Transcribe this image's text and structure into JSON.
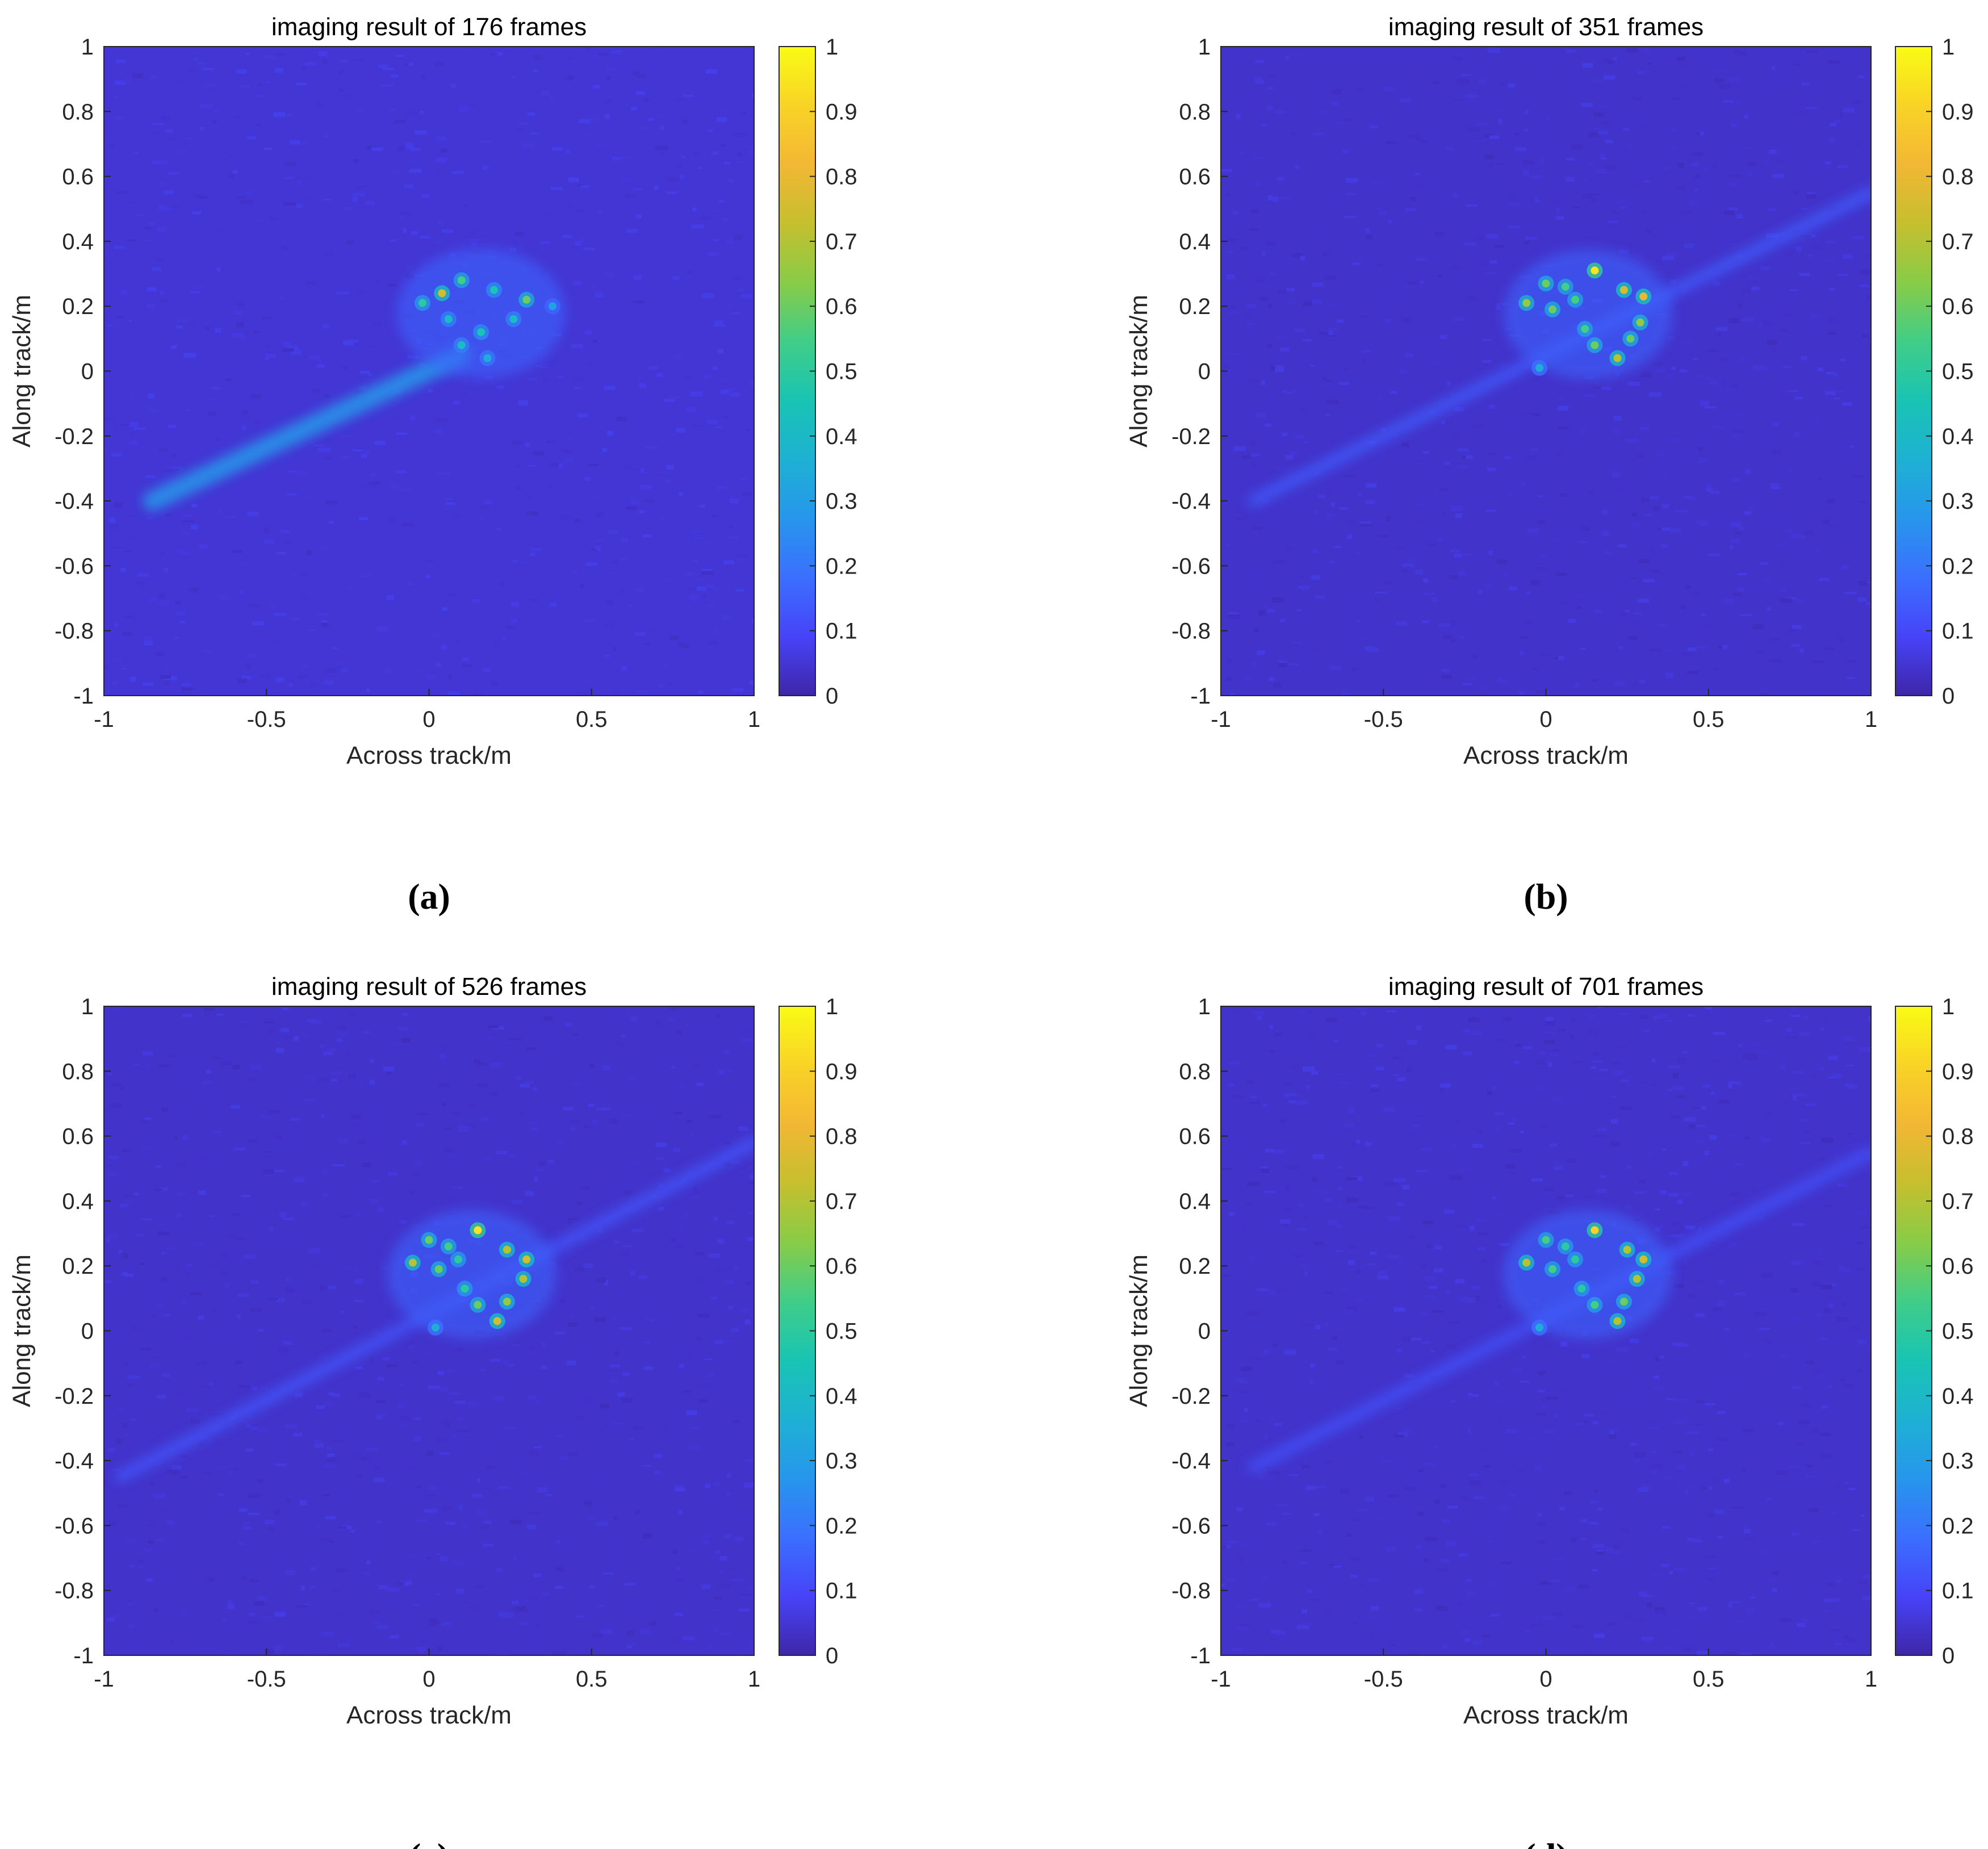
{
  "figure": {
    "colormap": [
      "#3e26a8",
      "#4743f8",
      "#3b6ffe",
      "#2796ec",
      "#1eb1d3",
      "#19c4b3",
      "#40cd88",
      "#88cc48",
      "#c6bf2e",
      "#f2b734",
      "#f9d326",
      "#f9fb15"
    ],
    "background_color": "#3a32b4"
  },
  "chart_data": [
    {
      "type": "heatmap",
      "panel_label": "(a)",
      "title": "imaging result of 176 frames",
      "xlabel": "Across track/m",
      "ylabel": "Along track/m",
      "xlim": [
        -1,
        1
      ],
      "ylim": [
        -1,
        1
      ],
      "xticks": [
        "-1",
        "-0.5",
        "0",
        "0.5",
        "1"
      ],
      "yticks": [
        "1",
        "0.8",
        "0.6",
        "0.4",
        "0.2",
        "0",
        "-0.2",
        "-0.4",
        "-0.6",
        "-0.8",
        "-1"
      ],
      "colorbar": {
        "clim": [
          0,
          1
        ],
        "ticks": [
          "1",
          "0.9",
          "0.8",
          "0.7",
          "0.6",
          "0.5",
          "0.4",
          "0.3",
          "0.2",
          "0.1",
          "0"
        ]
      },
      "background_level": 0.05,
      "peaks": [
        {
          "x": 0.04,
          "y": 0.24,
          "value": 0.75
        },
        {
          "x": -0.02,
          "y": 0.21,
          "value": 0.5
        },
        {
          "x": 0.1,
          "y": 0.28,
          "value": 0.55
        },
        {
          "x": 0.2,
          "y": 0.25,
          "value": 0.45
        },
        {
          "x": 0.3,
          "y": 0.22,
          "value": 0.6
        },
        {
          "x": 0.26,
          "y": 0.16,
          "value": 0.4
        },
        {
          "x": 0.16,
          "y": 0.12,
          "value": 0.45
        },
        {
          "x": 0.1,
          "y": 0.08,
          "value": 0.4
        },
        {
          "x": 0.18,
          "y": 0.04,
          "value": 0.35
        },
        {
          "x": 0.06,
          "y": 0.16,
          "value": 0.4
        },
        {
          "x": 0.38,
          "y": 0.2,
          "value": 0.3
        }
      ],
      "streak": {
        "from": [
          -0.85,
          -0.4
        ],
        "to": [
          0.1,
          0.05
        ],
        "value": 0.28,
        "width": 0.06
      }
    },
    {
      "type": "heatmap",
      "panel_label": "(b)",
      "title": "imaging result of 351 frames",
      "xlabel": "Across track/m",
      "ylabel": "Along track/m",
      "xlim": [
        -1,
        1
      ],
      "ylim": [
        -1,
        1
      ],
      "xticks": [
        "-1",
        "-0.5",
        "0",
        "0.5",
        "1"
      ],
      "yticks": [
        "1",
        "0.8",
        "0.6",
        "0.4",
        "0.2",
        "0",
        "-0.2",
        "-0.4",
        "-0.6",
        "-0.8",
        "-1"
      ],
      "colorbar": {
        "clim": [
          0,
          1
        ],
        "ticks": [
          "1",
          "0.9",
          "0.8",
          "0.7",
          "0.6",
          "0.5",
          "0.4",
          "0.3",
          "0.2",
          "0.1",
          "0"
        ]
      },
      "background_level": 0.04,
      "peaks": [
        {
          "x": 0.15,
          "y": 0.31,
          "value": 0.95
        },
        {
          "x": 0.0,
          "y": 0.27,
          "value": 0.6
        },
        {
          "x": 0.06,
          "y": 0.26,
          "value": 0.55
        },
        {
          "x": -0.06,
          "y": 0.21,
          "value": 0.65
        },
        {
          "x": 0.02,
          "y": 0.19,
          "value": 0.6
        },
        {
          "x": 0.09,
          "y": 0.22,
          "value": 0.55
        },
        {
          "x": 0.24,
          "y": 0.25,
          "value": 0.75
        },
        {
          "x": 0.3,
          "y": 0.23,
          "value": 0.8
        },
        {
          "x": 0.29,
          "y": 0.15,
          "value": 0.65
        },
        {
          "x": 0.26,
          "y": 0.1,
          "value": 0.6
        },
        {
          "x": 0.22,
          "y": 0.04,
          "value": 0.7
        },
        {
          "x": 0.15,
          "y": 0.08,
          "value": 0.6
        },
        {
          "x": 0.12,
          "y": 0.13,
          "value": 0.55
        },
        {
          "x": -0.02,
          "y": 0.01,
          "value": 0.35
        }
      ],
      "streak": {
        "from": [
          -0.9,
          -0.4
        ],
        "to": [
          1.0,
          0.55
        ],
        "value": 0.14,
        "width": 0.035
      }
    },
    {
      "type": "heatmap",
      "panel_label": "(c)",
      "title": "imaging result of 526 frames",
      "xlabel": "Across track/m",
      "ylabel": "Along track/m",
      "xlim": [
        -1,
        1
      ],
      "ylim": [
        -1,
        1
      ],
      "xticks": [
        "-1",
        "-0.5",
        "0",
        "0.5",
        "1"
      ],
      "yticks": [
        "1",
        "0.8",
        "0.6",
        "0.4",
        "0.2",
        "0",
        "-0.2",
        "-0.4",
        "-0.6",
        "-0.8",
        "-1"
      ],
      "colorbar": {
        "clim": [
          0,
          1
        ],
        "ticks": [
          "1",
          "0.9",
          "0.8",
          "0.7",
          "0.6",
          "0.5",
          "0.4",
          "0.3",
          "0.2",
          "0.1",
          "0"
        ]
      },
      "background_level": 0.04,
      "peaks": [
        {
          "x": 0.15,
          "y": 0.31,
          "value": 0.95
        },
        {
          "x": 0.0,
          "y": 0.28,
          "value": 0.6
        },
        {
          "x": 0.06,
          "y": 0.26,
          "value": 0.55
        },
        {
          "x": -0.05,
          "y": 0.21,
          "value": 0.7
        },
        {
          "x": 0.03,
          "y": 0.19,
          "value": 0.6
        },
        {
          "x": 0.09,
          "y": 0.22,
          "value": 0.5
        },
        {
          "x": 0.24,
          "y": 0.25,
          "value": 0.7
        },
        {
          "x": 0.3,
          "y": 0.22,
          "value": 0.75
        },
        {
          "x": 0.29,
          "y": 0.16,
          "value": 0.7
        },
        {
          "x": 0.24,
          "y": 0.09,
          "value": 0.65
        },
        {
          "x": 0.21,
          "y": 0.03,
          "value": 0.75
        },
        {
          "x": 0.15,
          "y": 0.08,
          "value": 0.6
        },
        {
          "x": 0.11,
          "y": 0.13,
          "value": 0.5
        },
        {
          "x": 0.02,
          "y": 0.01,
          "value": 0.35
        }
      ],
      "streak": {
        "from": [
          -0.95,
          -0.45
        ],
        "to": [
          1.0,
          0.58
        ],
        "value": 0.13,
        "width": 0.035
      }
    },
    {
      "type": "heatmap",
      "panel_label": "(d)",
      "title": "imaging result of 701 frames",
      "xlabel": "Across track/m",
      "ylabel": "Along track/m",
      "xlim": [
        -1,
        1
      ],
      "ylim": [
        -1,
        1
      ],
      "xticks": [
        "-1",
        "-0.5",
        "0",
        "0.5",
        "1"
      ],
      "yticks": [
        "1",
        "0.8",
        "0.6",
        "0.4",
        "0.2",
        "0",
        "-0.2",
        "-0.4",
        "-0.6",
        "-0.8",
        "-1"
      ],
      "colorbar": {
        "clim": [
          0,
          1
        ],
        "ticks": [
          "1",
          "0.9",
          "0.8",
          "0.7",
          "0.6",
          "0.5",
          "0.4",
          "0.3",
          "0.2",
          "0.1",
          "0"
        ]
      },
      "background_level": 0.04,
      "peaks": [
        {
          "x": 0.15,
          "y": 0.31,
          "value": 0.9
        },
        {
          "x": 0.0,
          "y": 0.28,
          "value": 0.55
        },
        {
          "x": 0.06,
          "y": 0.26,
          "value": 0.5
        },
        {
          "x": -0.06,
          "y": 0.21,
          "value": 0.7
        },
        {
          "x": 0.02,
          "y": 0.19,
          "value": 0.55
        },
        {
          "x": 0.09,
          "y": 0.22,
          "value": 0.5
        },
        {
          "x": 0.25,
          "y": 0.25,
          "value": 0.7
        },
        {
          "x": 0.3,
          "y": 0.22,
          "value": 0.75
        },
        {
          "x": 0.28,
          "y": 0.16,
          "value": 0.7
        },
        {
          "x": 0.24,
          "y": 0.09,
          "value": 0.6
        },
        {
          "x": 0.22,
          "y": 0.03,
          "value": 0.7
        },
        {
          "x": 0.15,
          "y": 0.08,
          "value": 0.55
        },
        {
          "x": 0.11,
          "y": 0.13,
          "value": 0.5
        },
        {
          "x": -0.02,
          "y": 0.01,
          "value": 0.35
        }
      ],
      "streak": {
        "from": [
          -0.9,
          -0.42
        ],
        "to": [
          1.0,
          0.55
        ],
        "value": 0.12,
        "width": 0.035
      }
    }
  ]
}
